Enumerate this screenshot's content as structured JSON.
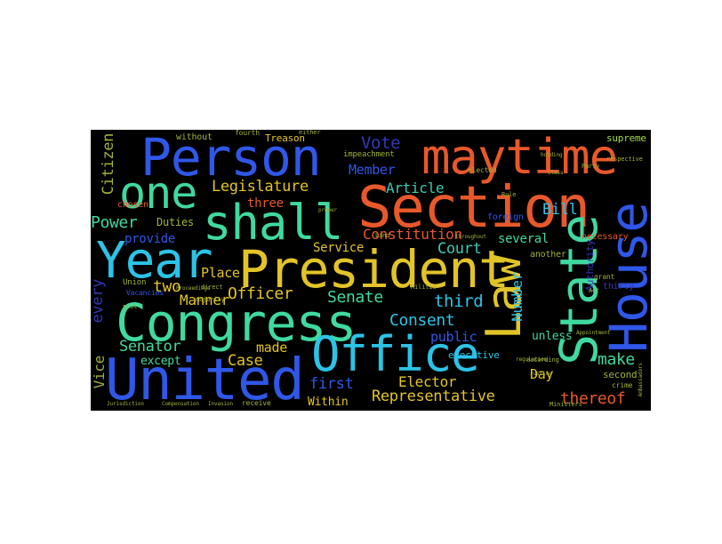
{
  "wordcloud": {
    "colors": {
      "background": "#000000",
      "page": "#ffffff",
      "blue": "#2f57e8",
      "lightblue": "#2cc3e6",
      "cyan": "#2bb5dd",
      "green": "#40d9a0",
      "teal": "#3fc9b5",
      "yellow": "#e2c428",
      "orange": "#e8582a",
      "olive": "#9fb23a",
      "lime": "#a4d94a",
      "navy": "#3338b7"
    },
    "words": {
      "person": "Person",
      "maytime": "maytime",
      "one": "one",
      "section": "Section",
      "shall": "shall",
      "year": "Year",
      "president": "President",
      "congress": "Congress",
      "office": "Office",
      "united": "United",
      "state": "State",
      "house": "House",
      "law": "Law",
      "legislature": "Legislature",
      "constitution": "Constitution",
      "vote": "Vote",
      "member": "Member",
      "article": "Article",
      "bill": "Bill",
      "citizen": "Citizen",
      "power": "Power",
      "provide": "provide",
      "three": "three",
      "two": "two",
      "officer": "Officer",
      "manner": "Manner",
      "place": "Place",
      "duties": "Duties",
      "service": "Service",
      "court": "Court",
      "several": "several",
      "senate": "Senate",
      "third": "third",
      "consent": "Consent",
      "number": "Number",
      "senator": "Senator",
      "made": "made",
      "case": "Case",
      "public": "public",
      "make": "make",
      "every": "every",
      "vice": "Vice",
      "except": "except",
      "first": "first",
      "elector": "Elector",
      "representative": "Representative",
      "day": "Day",
      "within": "Within",
      "thereof": "thereof",
      "unless": "unless",
      "treason": "Treason",
      "without": "without",
      "fourth": "fourth",
      "supreme": "supreme",
      "impeachment": "impeachment",
      "elected": "elected",
      "chosen": "chosen",
      "union": "Union",
      "executive": "executive",
      "foreign": "foreign",
      "another": "another",
      "second": "second",
      "necessary": "necessary",
      "thirty": "thirty",
      "authority": "Authority",
      "grant": "grant",
      "crime": "crime",
      "receive": "receive",
      "post": "post",
      "vacancies": "Vacancies",
      "direct": "direct",
      "majority": "majority",
      "militia": "Militia",
      "ministers": "Ministers",
      "party": "Party",
      "act": "Act",
      "either": "either",
      "rule": "Rule",
      "land": "Land",
      "jurisdiction": "Jurisdiction",
      "compensation": "Compensation",
      "invasion": "Invasion",
      "according": "according",
      "respective": "respective",
      "proceedings": "Proceedings",
      "appointment": "Appointment",
      "throughout": "throughout",
      "holding": "holding",
      "justice": "Justice",
      "class": "Class",
      "proper": "proper",
      "regulation": "regulation",
      "ambassadors": "Ambassadors"
    }
  }
}
